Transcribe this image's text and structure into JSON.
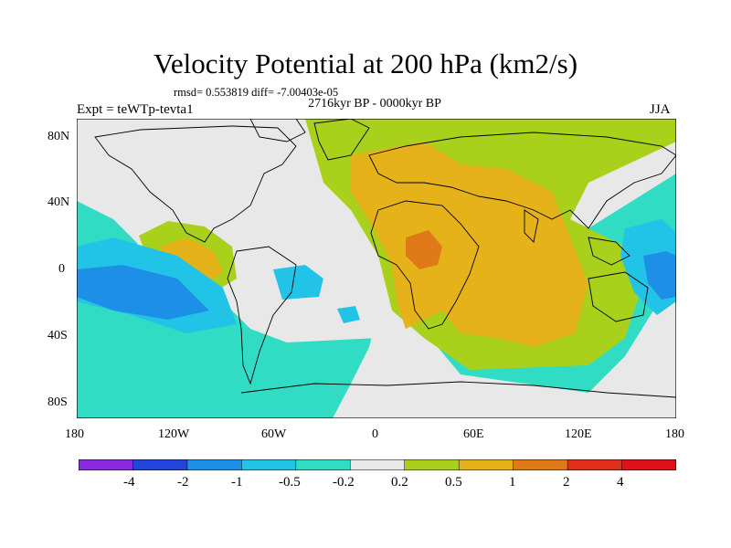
{
  "title": "Velocity Potential at 200 hPa (km2/s)",
  "stats": "rmsd= 0.553819 diff= -7.00403e-05",
  "period": "2716kyr BP - 0000kyr BP",
  "experiment": "Expt = teWTp-tevta1",
  "season": "JJA",
  "lat_labels": [
    "80N",
    "40N",
    "0",
    "40S",
    "80S"
  ],
  "lon_labels": [
    "180",
    "120W",
    "60W",
    "0",
    "60E",
    "120E",
    "180"
  ],
  "colorbar": {
    "labels": [
      "-4",
      "-2",
      "-1",
      "-0.5",
      "-0.2",
      "0.2",
      "0.5",
      "1",
      "2",
      "4"
    ],
    "colors": [
      "#8a2be2",
      "#2244dd",
      "#1e8fe6",
      "#21c4e6",
      "#30dcc3",
      "#e8e8e8",
      "#a9d11b",
      "#e5b21a",
      "#e07a18",
      "#e0301a"
    ]
  },
  "field_colors": {
    "neg_strong": "#1e8fe6",
    "neg_mid": "#21c4e6",
    "neg_weak": "#30dcc3",
    "neutral": "#e8e8e8",
    "pos_weak": "#a9d11b",
    "pos_mid": "#e5b21a",
    "pos_strong": "#e07a18"
  }
}
